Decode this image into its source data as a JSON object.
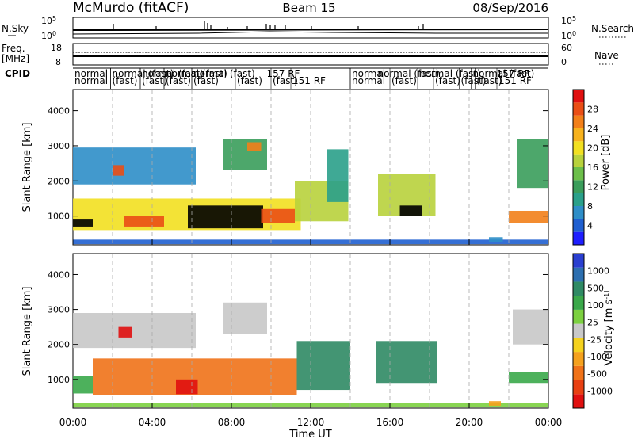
{
  "header": {
    "station": "McMurdo (fitACF)",
    "beam": "Beam 15",
    "date": "08/Sep/2016"
  },
  "strips": {
    "nsky": {
      "label": "N.Sky",
      "tick_top": "10^5",
      "tick_bottom": "10^0",
      "right_label": "N.Search",
      "right_tick_top": "10^5",
      "right_tick_bottom": "10^0"
    },
    "freq": {
      "label_1": "Freq.",
      "label_2": "[MHz]",
      "tick_top": "18",
      "tick_bottom": "8",
      "right_label": "Nave",
      "right_tick_top": "60",
      "right_tick_bottom": "0"
    },
    "cpid": {
      "label": "CPID",
      "row1": [
        {
          "t": "normal",
          "x": 0.0
        },
        {
          "t": "normal (fast)",
          "x": 1.9
        },
        {
          "t": "normal (fast)",
          "x": 3.4
        },
        {
          "t": "normal (fast)",
          "x": 4.6
        },
        {
          "t": "normal (fast)",
          "x": 6.0
        },
        {
          "t": "157 RF",
          "x": 9.7
        },
        {
          "t": "normal",
          "x": 14.0
        },
        {
          "t": "normal (fast)",
          "x": 15.3
        },
        {
          "t": "normal (fast)",
          "x": 17.4
        },
        {
          "t": "normal (fast)",
          "x": 20.1
        },
        {
          "t": "157 RF",
          "x": 21.3
        }
      ],
      "row2": [
        {
          "t": "normal",
          "x": 0.0
        },
        {
          "t": "(fast)",
          "x": 1.9
        },
        {
          "t": "(fast)",
          "x": 3.4
        },
        {
          "t": "(fast)",
          "x": 4.6
        },
        {
          "t": "(fast)",
          "x": 6.0
        },
        {
          "t": "(fast)",
          "x": 8.2
        },
        {
          "t": "(fast)",
          "x": 10.0
        },
        {
          "t": "151 RF",
          "x": 11.0
        },
        {
          "t": "normal",
          "x": 14.0
        },
        {
          "t": "(fast)",
          "x": 16.0
        },
        {
          "t": "(fast)",
          "x": 18.2
        },
        {
          "t": "(fast)",
          "x": 19.5
        },
        {
          "t": "(fast)",
          "x": 20.3
        },
        {
          "t": "151 RF",
          "x": 21.4
        }
      ]
    }
  },
  "chart_data": [
    {
      "type": "heatmap",
      "title": "Power",
      "xlabel": "Time UT",
      "ylabel": "Slant Range [km]",
      "xlim": [
        0,
        24
      ],
      "ylim": [
        180,
        4600
      ],
      "x_ticks": [
        "00:00",
        "04:00",
        "08:00",
        "12:00",
        "16:00",
        "20:00",
        "00:00"
      ],
      "y_ticks": [
        "1000",
        "2000",
        "3000",
        "4000"
      ],
      "colorbar": {
        "label": "Power [dB]",
        "ticks": [
          "4",
          "8",
          "12",
          "16",
          "20",
          "24",
          "28"
        ],
        "colors": [
          "#1e1eff",
          "#1f5fd0",
          "#2e8ec8",
          "#2aa08a",
          "#3a9d5b",
          "#6cbf4a",
          "#b8d23c",
          "#f2e020",
          "#f7b21d",
          "#f27f19",
          "#ea4e15",
          "#e01010"
        ]
      },
      "regions": [
        {
          "t0": 0.0,
          "t1": 24.0,
          "r0": 200,
          "r1": 330,
          "level": 1
        },
        {
          "t0": 0.0,
          "t1": 11.5,
          "r0": 600,
          "r1": 1500,
          "level": 7
        },
        {
          "t0": 0.0,
          "t1": 1.0,
          "r0": 700,
          "r1": 900,
          "level": 12
        },
        {
          "t0": 2.6,
          "t1": 4.6,
          "r0": 700,
          "r1": 1000,
          "level": 10
        },
        {
          "t0": 5.8,
          "t1": 9.6,
          "r0": 650,
          "r1": 1300,
          "level": 12
        },
        {
          "t0": 9.5,
          "t1": 11.2,
          "r0": 800,
          "r1": 1200,
          "level": 10
        },
        {
          "t0": 11.2,
          "t1": 13.9,
          "r0": 850,
          "r1": 2000,
          "level": 6
        },
        {
          "t0": 15.4,
          "t1": 18.3,
          "r0": 1000,
          "r1": 2200,
          "level": 6
        },
        {
          "t0": 16.5,
          "t1": 17.6,
          "r0": 1000,
          "r1": 1300,
          "level": 12
        },
        {
          "t0": 0.0,
          "t1": 6.2,
          "r0": 1900,
          "r1": 2950,
          "level": 2
        },
        {
          "t0": 2.0,
          "t1": 2.6,
          "r0": 2150,
          "r1": 2450,
          "level": 10
        },
        {
          "t0": 7.6,
          "t1": 9.8,
          "r0": 2300,
          "r1": 3200,
          "level": 4
        },
        {
          "t0": 8.8,
          "t1": 9.5,
          "r0": 2850,
          "r1": 3100,
          "level": 9
        },
        {
          "t0": 12.8,
          "t1": 13.9,
          "r0": 1400,
          "r1": 2900,
          "level": 3
        },
        {
          "t0": 22.0,
          "t1": 24.0,
          "r0": 800,
          "r1": 1150,
          "level": 9
        },
        {
          "t0": 22.4,
          "t1": 24.0,
          "r0": 1800,
          "r1": 3200,
          "level": 4
        },
        {
          "t0": 21.0,
          "t1": 21.7,
          "r0": 250,
          "r1": 400,
          "level": 2
        }
      ]
    },
    {
      "type": "heatmap",
      "title": "Velocity",
      "xlabel": "Time UT",
      "ylabel": "Slant Range [km]",
      "xlim": [
        0,
        24
      ],
      "ylim": [
        180,
        4600
      ],
      "x_ticks": [
        "00:00",
        "04:00",
        "08:00",
        "12:00",
        "16:00",
        "20:00",
        "00:00"
      ],
      "y_ticks": [
        "1000",
        "2000",
        "3000",
        "4000"
      ],
      "colorbar": {
        "label": "Velocity [m s^-1]",
        "ticks": [
          "1000",
          "500",
          "100",
          "25",
          "-25",
          "-100",
          "-500",
          "-1000"
        ],
        "colors": [
          "#2a3fd0",
          "#2d6fb0",
          "#2f8a64",
          "#3aa84a",
          "#7cd040",
          "#c8c8c8",
          "#f5d21e",
          "#f5a11d",
          "#f07218",
          "#e84012",
          "#e01010"
        ]
      },
      "regions": [
        {
          "t0": 0.0,
          "t1": 24.0,
          "r0": 200,
          "r1": 320,
          "level": 6
        },
        {
          "t0": 0.0,
          "t1": 1.0,
          "r0": 600,
          "r1": 1100,
          "level": 7
        },
        {
          "t0": 1.0,
          "t1": 11.3,
          "r0": 550,
          "r1": 1600,
          "level": 2
        },
        {
          "t0": 5.2,
          "t1": 6.3,
          "r0": 580,
          "r1": 1000,
          "level": 0
        },
        {
          "t0": 11.3,
          "t1": 14.0,
          "r0": 700,
          "r1": 2100,
          "level": 8
        },
        {
          "t0": 15.3,
          "t1": 18.4,
          "r0": 900,
          "r1": 2100,
          "level": 8
        },
        {
          "t0": 0.0,
          "t1": 6.2,
          "r0": 1900,
          "r1": 2900,
          "level": 5
        },
        {
          "t0": 2.3,
          "t1": 3.0,
          "r0": 2200,
          "r1": 2500,
          "level": 0
        },
        {
          "t0": 7.6,
          "t1": 9.8,
          "r0": 2300,
          "r1": 3200,
          "level": 5
        },
        {
          "t0": 22.2,
          "t1": 24.0,
          "r0": 2000,
          "r1": 3000,
          "level": 5
        },
        {
          "t0": 22.0,
          "t1": 24.0,
          "r0": 900,
          "r1": 1200,
          "level": 7
        },
        {
          "t0": 21.0,
          "t1": 21.6,
          "r0": 250,
          "r1": 380,
          "level": 3
        }
      ]
    }
  ]
}
